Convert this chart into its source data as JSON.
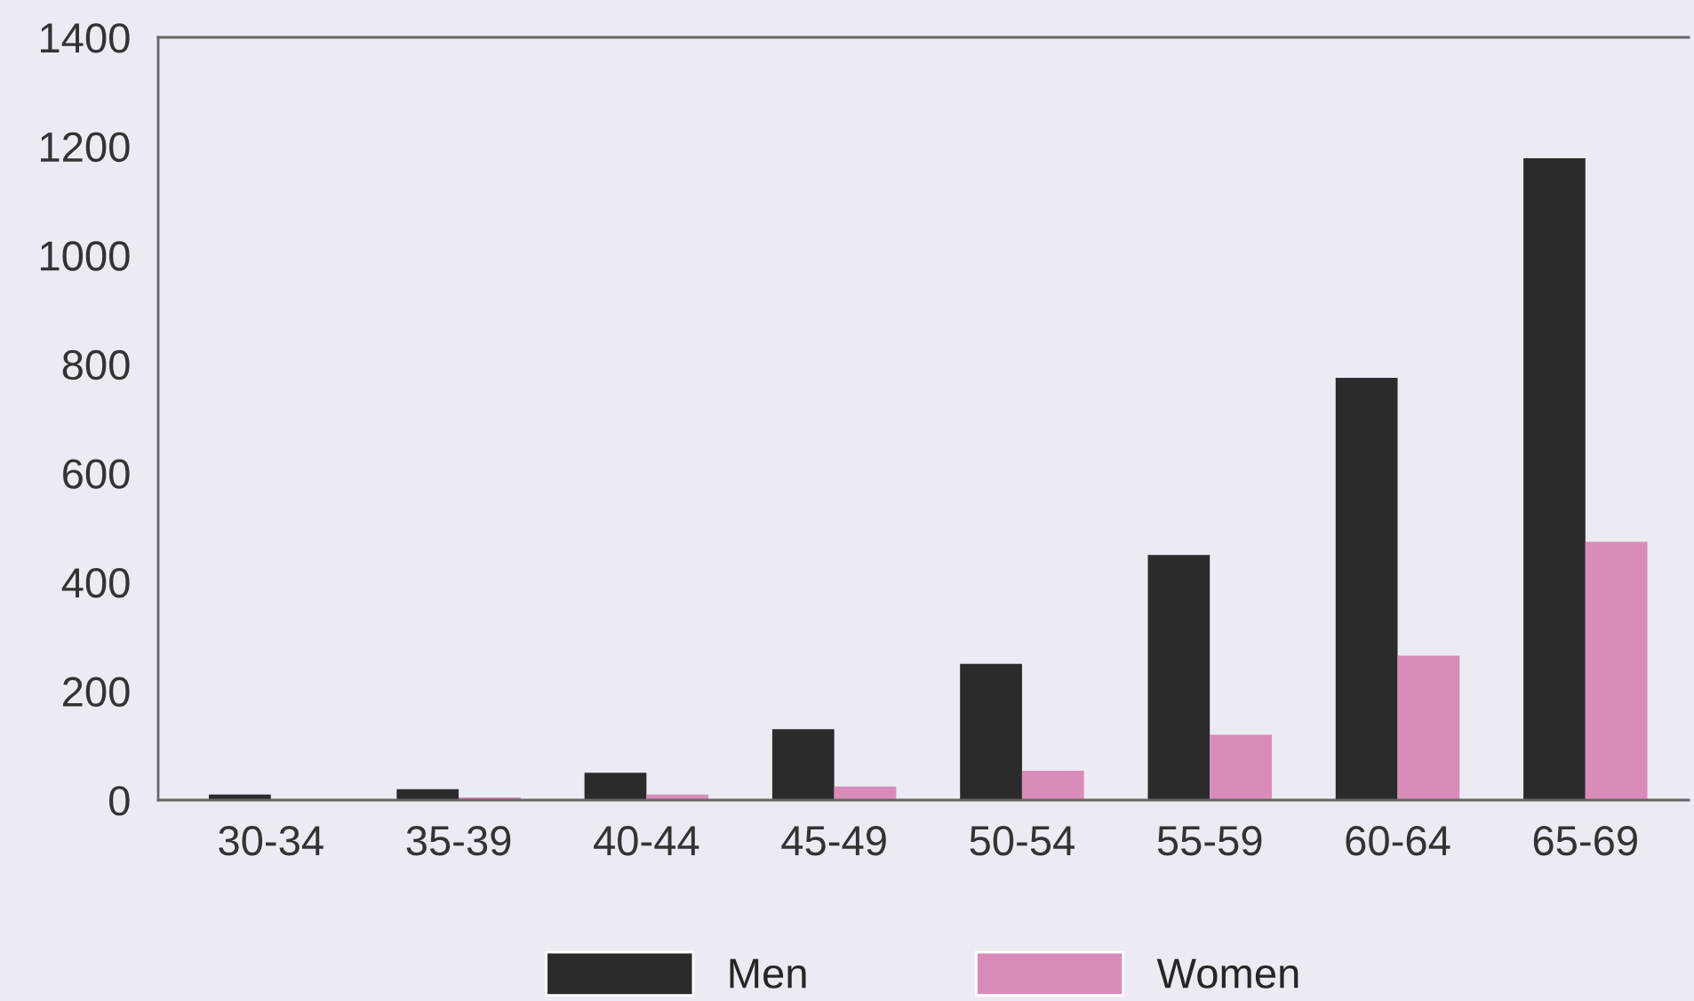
{
  "chart_data": {
    "type": "bar",
    "categories": [
      "30-34",
      "35-39",
      "40-44",
      "45-49",
      "50-54",
      "55-59",
      "60-64",
      "65-69"
    ],
    "series": [
      {
        "name": "Men",
        "color": "#2b2b2b",
        "values": [
          10,
          20,
          50,
          130,
          250,
          450,
          775,
          1178
        ]
      },
      {
        "name": "Women",
        "color": "#d98cba",
        "values": [
          null,
          5,
          10,
          25,
          54,
          120,
          265,
          474
        ]
      }
    ],
    "ylim": [
      0,
      1400
    ],
    "yticks": [
      0,
      200,
      400,
      600,
      800,
      1000,
      1200,
      1400
    ],
    "grid": false,
    "legend": "bottom"
  }
}
